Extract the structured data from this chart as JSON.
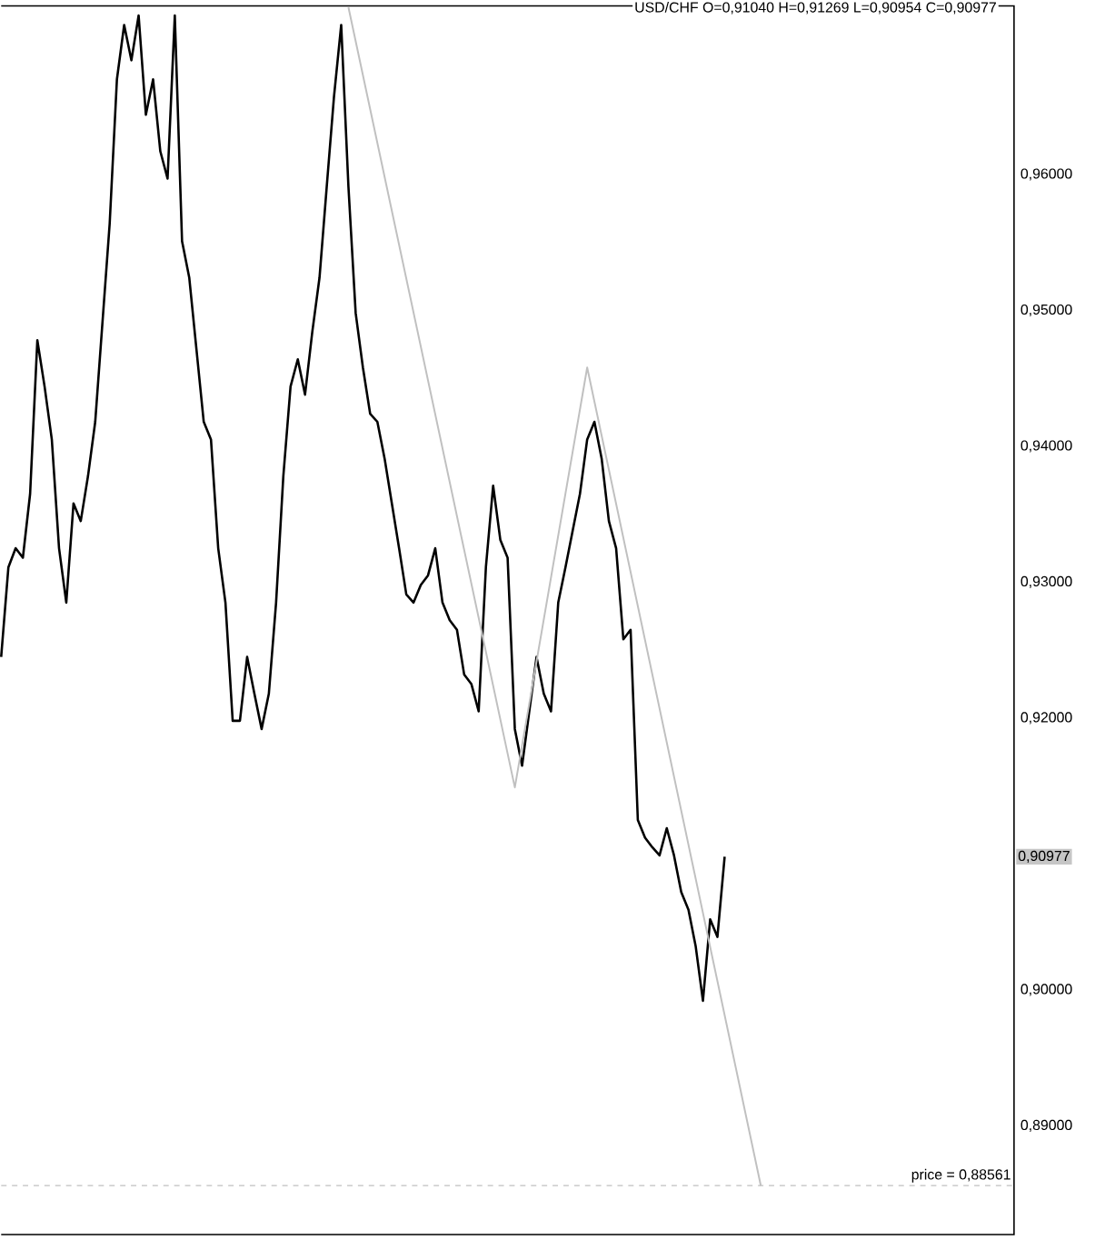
{
  "chart_data": {
    "type": "line",
    "title": "USD/CHF O=0,91040 H=0,91269 L=0,90954 C=0,90977",
    "categories": [
      null,
      null,
      null,
      null,
      null,
      null,
      null,
      null,
      null,
      null,
      null,
      null,
      null,
      null,
      null,
      null,
      null,
      null,
      null,
      null,
      null,
      null,
      null,
      null,
      null,
      null,
      null,
      null,
      null,
      null,
      null,
      null,
      null,
      null,
      null,
      null,
      null,
      null,
      null,
      null,
      null,
      null,
      null,
      null,
      null,
      null,
      null,
      null,
      null,
      null,
      null,
      null,
      null,
      null,
      null,
      null,
      null,
      null,
      null,
      null,
      null,
      null,
      null,
      null,
      null,
      null,
      null,
      null,
      null,
      null,
      null,
      null,
      null,
      null,
      null,
      null,
      null,
      null,
      null,
      null,
      null,
      null,
      null,
      null,
      null,
      null,
      null,
      null,
      null,
      null,
      null,
      null,
      null,
      null,
      null,
      null,
      null,
      null,
      null,
      null,
      null,
      null,
      null,
      null,
      null,
      null,
      null,
      null,
      null,
      null,
      null,
      null,
      null,
      null,
      null,
      null,
      null,
      null,
      null,
      null,
      null,
      null,
      null,
      null,
      null,
      null,
      null,
      null,
      null,
      null,
      null,
      null,
      null,
      null,
      null,
      null,
      null,
      null,
      null,
      null,
      null
    ],
    "series": [
      {
        "color": "#000000",
        "values": [
          0.9245,
          0.9311,
          0.9325,
          0.9318,
          0.9365,
          0.9478,
          0.9444,
          0.9405,
          0.9325,
          0.9285,
          0.9358,
          0.9345,
          0.9378,
          0.9418,
          0.9491,
          0.9564,
          0.967,
          0.971,
          0.9684,
          0.9717,
          0.9644,
          0.967,
          0.9617,
          0.9597,
          0.9717,
          0.9551,
          0.9524,
          0.9471,
          0.9418,
          0.9405,
          0.9325,
          0.9285,
          0.9198,
          0.9198,
          0.9245,
          0.9218,
          0.9192,
          0.9218,
          0.9285,
          0.9378,
          0.9444,
          0.9464,
          0.9438,
          0.9484,
          0.9524,
          0.9591,
          0.9657,
          0.971,
          0.9591,
          0.9498,
          0.9458,
          0.9424,
          0.9418,
          0.9391,
          0.9358,
          0.9325,
          0.9291,
          0.9285,
          0.9298,
          0.9305,
          0.9325,
          0.9285,
          0.9272,
          0.9265,
          0.9232,
          0.9225,
          0.9205,
          0.9311,
          0.9371,
          0.9331,
          0.9318,
          0.9192,
          0.9165,
          0.9205,
          0.9245,
          0.9218,
          0.9205,
          0.9285,
          0.9311,
          0.9338,
          0.9365,
          0.9405,
          0.9418,
          0.9391,
          0.9345,
          0.9325,
          0.9258,
          0.9265,
          0.9125,
          0.9112,
          0.9105,
          0.9099,
          0.9119,
          0.9099,
          0.9072,
          0.9059,
          0.9032,
          0.8992,
          0.9052,
          0.9039,
          0.9098,
          null,
          null,
          null,
          null,
          null,
          null,
          null,
          null,
          null,
          null,
          null,
          null,
          null,
          null,
          null,
          null,
          null,
          null,
          null,
          null,
          null,
          null,
          null,
          null,
          null,
          null,
          null,
          null,
          null,
          null,
          null,
          null,
          null,
          null,
          null,
          null,
          null,
          null,
          null,
          null
        ]
      },
      {
        "type": "line",
        "color": "#c0c0c0",
        "values": [
          null,
          null,
          null,
          null,
          null,
          null,
          null,
          null,
          null,
          null,
          null,
          null,
          null,
          null,
          null,
          null,
          null,
          null,
          null,
          null,
          null,
          null,
          null,
          null,
          null,
          null,
          null,
          null,
          null,
          null,
          null,
          null,
          null,
          null,
          null,
          null,
          null,
          null,
          null,
          null,
          null,
          null,
          null,
          null,
          null,
          null,
          null,
          null,
          0.9723,
          null,
          null,
          null,
          null,
          null,
          null,
          null,
          null,
          null,
          null,
          null,
          null,
          null,
          null,
          null,
          null,
          null,
          null,
          null,
          null,
          null,
          null,
          0.9149,
          null,
          null,
          null,
          null,
          null,
          null,
          null,
          null,
          null,
          0.9458,
          null,
          null,
          null,
          null,
          null,
          null,
          null,
          null,
          null,
          null,
          null,
          null,
          null,
          null,
          null,
          null,
          null,
          null,
          null,
          null,
          null,
          null,
          null,
          0.8856,
          null,
          null,
          null,
          null,
          null,
          null,
          null,
          null,
          null,
          null,
          null,
          null,
          null,
          null,
          null,
          null,
          null,
          null,
          null,
          null,
          null,
          null,
          null,
          null,
          null,
          null,
          null,
          null,
          null,
          null,
          null,
          null,
          null,
          null,
          null
        ]
      }
    ],
    "ylim": [
      0.882,
      0.9724
    ],
    "yticks": [
      {
        "value": 0.89,
        "label": "0,89000"
      },
      {
        "value": 0.9,
        "label": "0,90000"
      },
      {
        "value": 0.92,
        "label": "0,92000"
      },
      {
        "value": 0.93,
        "label": "0,93000"
      },
      {
        "value": 0.94,
        "label": "0,94000"
      },
      {
        "value": 0.95,
        "label": "0,95000"
      },
      {
        "value": 0.96,
        "label": "0,96000"
      }
    ],
    "tick_labels": "y",
    "ref_lines": [
      {
        "axis": "y",
        "value": 0.88561,
        "label": "price = 0,88561",
        "color": "#c0c0c0",
        "line_style": "dashed"
      }
    ],
    "annotations": [
      "0,90977"
    ]
  }
}
